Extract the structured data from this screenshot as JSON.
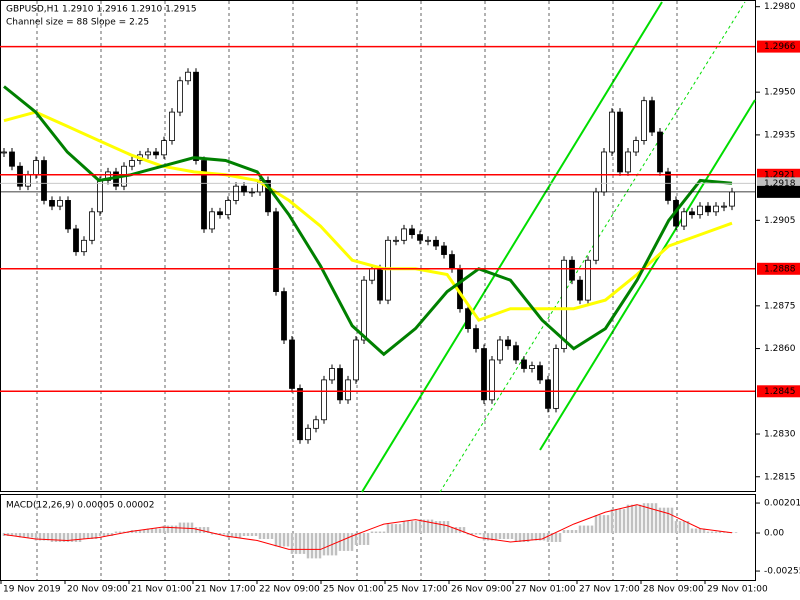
{
  "header": {
    "symbol_line": "GBPUSD,H1  1.2910 1.2916 1.2910 1.2915",
    "channel_line": "Channel size = 88 Slope = 2.25"
  },
  "chart_data": [
    {
      "type": "candlestick",
      "closes": [
        1.2929,
        1.2924,
        1.2917,
        1.2921,
        1.2926,
        1.2912,
        1.291,
        1.2912,
        1.2902,
        1.2894,
        1.2898,
        1.2908,
        1.2919,
        1.2922,
        1.2917,
        1.2924,
        1.2926,
        1.2928,
        1.2929,
        1.2928,
        1.2933,
        1.2943,
        1.2954,
        1.2957,
        1.2926,
        1.2902,
        1.2908,
        1.2907,
        1.2912,
        1.2917,
        1.2915,
        1.2915,
        1.2919,
        1.2908,
        1.288,
        1.2863,
        1.2846,
        1.2828,
        1.2832,
        1.2835,
        1.2849,
        1.2853,
        1.2842,
        1.2849,
        1.2863,
        1.2884,
        1.2888,
        1.2877,
        1.2898,
        1.2898,
        1.2902,
        1.29,
        1.2898,
        1.2898,
        1.2896,
        1.2893,
        1.2888,
        1.2874,
        1.2867,
        1.286,
        1.2842,
        1.2856,
        1.2863,
        1.2861,
        1.2856,
        1.2853,
        1.2854,
        1.2849,
        1.2839,
        1.286,
        1.2891,
        1.2884,
        1.2877,
        1.2891,
        1.2915,
        1.2929,
        1.2943,
        1.2922,
        1.2929,
        1.2933,
        1.2947,
        1.2936,
        1.2922,
        1.2912,
        1.2903,
        1.2908,
        1.2907,
        1.291,
        1.2908,
        1.291,
        1.291,
        1.2915
      ],
      "series": [
        {
          "color": "#ffff00",
          "values": [
            1.294,
            1.2943,
            1.2938,
            1.2933,
            1.2928,
            1.2924,
            1.2922,
            1.2921,
            1.2919,
            1.2912,
            1.2903,
            1.2891,
            1.2888,
            1.2888,
            1.2886,
            1.287,
            1.2874,
            1.2874,
            1.2874,
            1.2877,
            1.2886,
            1.2896,
            1.29,
            1.2904
          ]
        },
        {
          "color": "#008000",
          "values": [
            1.2952,
            1.2943,
            1.2929,
            1.2919,
            1.2921,
            1.2924,
            1.2927,
            1.2926,
            1.2922,
            1.2907,
            1.2889,
            1.2868,
            1.2858,
            1.2867,
            1.288,
            1.2888,
            1.2884,
            1.287,
            1.286,
            1.2867,
            1.2884,
            1.2905,
            1.2919,
            1.2918
          ]
        }
      ],
      "ylim": [
        1.281,
        1.2982
      ],
      "yticks": [
        {
          "value": 1.298,
          "label": "1.2980"
        },
        {
          "value": 1.295,
          "label": "1.2950"
        },
        1.2935,
        1.2905,
        1.2875,
        {
          "value": 1.286,
          "label": "1.2860"
        },
        {
          "value": 1.283,
          "label": "1.2830"
        },
        1.2815
      ],
      "levels": [
        {
          "value": 1.2966,
          "color": "#ff0000"
        },
        {
          "value": 1.2921,
          "color": "#ff0000"
        },
        {
          "value": 1.2918,
          "color": "#c0c0c0"
        },
        {
          "value": 1.2915,
          "color": "#000000"
        },
        {
          "value": 1.2888,
          "color": "#ff0000"
        },
        {
          "value": 1.2845,
          "color": "#ff0000"
        }
      ],
      "x_labels": [
        "19 Nov 2019",
        "20 Nov 09:00",
        "21 Nov 01:00",
        "21 Nov 17:00",
        "22 Nov 09:00",
        "25 Nov 01:00",
        "25 Nov 17:00",
        "26 Nov 09:00",
        "27 Nov 01:00",
        "27 Nov 17:00",
        "28 Nov 09:00",
        "29 Nov 01:00"
      ]
    },
    {
      "type": "macd",
      "title": "MACD(12,26,9) 0.00005 0.00002",
      "histogram": {
        "color": "#c0c0c0",
        "values": [
          -0.0002,
          -0.0003,
          -0.0005,
          -0.0006,
          -0.0006,
          -0.0004,
          -0.0002,
          0.0001,
          0.0002,
          0.0003,
          0.0005,
          0.0007,
          0.0004,
          -0.0001,
          -0.0003,
          -0.0002,
          -0.0004,
          -0.0009,
          -0.0014,
          -0.0017,
          -0.0015,
          -0.0012,
          -0.0008,
          0.0001,
          0.0006,
          0.0008,
          0.0009,
          0.0008,
          0.0004,
          -0.0001,
          -0.0005,
          -0.0004,
          -0.0006,
          -0.0005,
          -0.0006,
          0.0002,
          0.0005,
          0.0012,
          0.0016,
          0.0019,
          0.002,
          0.0017,
          0.0008,
          0.0003,
          0.0001,
          5e-05
        ]
      },
      "signal": {
        "color": "#ff0000",
        "values": [
          -0.0001,
          -0.0004,
          -0.0005,
          -0.0003,
          0.0001,
          0.0004,
          0.0003,
          -0.0002,
          -0.0005,
          -0.0011,
          -0.0011,
          -0.0002,
          0.0006,
          0.0009,
          0.0005,
          -0.0003,
          -0.0006,
          -0.0004,
          0.0006,
          0.0014,
          0.0019,
          0.0013,
          0.0003,
          2e-05
        ]
      },
      "ylim": [
        -0.00315,
        0.00255
      ],
      "yticks": [
        0.00201,
        {
          "value": 0,
          "label": "0.00"
        },
        -0.00255
      ]
    }
  ]
}
